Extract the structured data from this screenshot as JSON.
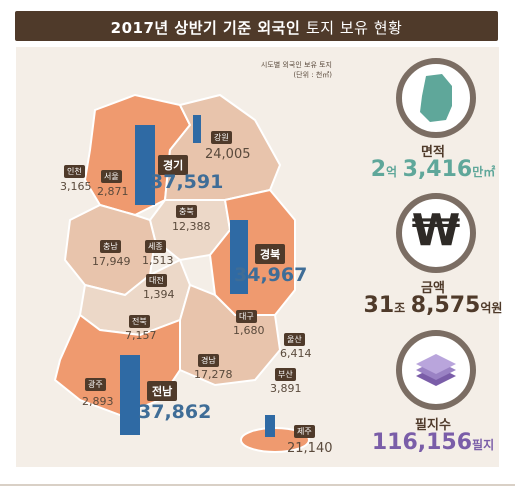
{
  "header": {
    "title_bold": "2017년 상반기 기준 외국인",
    "title_light": "토지 보유 현황"
  },
  "legend": {
    "line1": "시도별 외국인 보유 토지",
    "line2": "(단위 : 천㎡)"
  },
  "regions": [
    {
      "name": "강원",
      "value": "24,005",
      "big": false
    },
    {
      "name": "경기",
      "value": "37,591",
      "big": true
    },
    {
      "name": "인천",
      "value": "3,165",
      "big": false
    },
    {
      "name": "서울",
      "value": "2,871",
      "big": false
    },
    {
      "name": "충북",
      "value": "12,388",
      "big": false
    },
    {
      "name": "충남",
      "value": "17,949",
      "big": false
    },
    {
      "name": "세종",
      "value": "1,513",
      "big": false
    },
    {
      "name": "대전",
      "value": "1,394",
      "big": false
    },
    {
      "name": "경북",
      "value": "34,967",
      "big": true
    },
    {
      "name": "전북",
      "value": "7,157",
      "big": false
    },
    {
      "name": "대구",
      "value": "1,680",
      "big": false
    },
    {
      "name": "울산",
      "value": "6,414",
      "big": false
    },
    {
      "name": "경남",
      "value": "17,278",
      "big": false
    },
    {
      "name": "부산",
      "value": "3,891",
      "big": false
    },
    {
      "name": "광주",
      "value": "2,893",
      "big": false
    },
    {
      "name": "전남",
      "value": "37,862",
      "big": true
    },
    {
      "name": "제주",
      "value": "21,140",
      "big": false
    }
  ],
  "stats": {
    "area": {
      "title": "면적",
      "part1": "2",
      "unit1": "억",
      "part2": "3,416",
      "unit2": "만㎡"
    },
    "amount": {
      "title": "금액",
      "part1": "31",
      "unit1": "조",
      "part2": "8,575",
      "unit2": "억원"
    },
    "parcels": {
      "title": "필지수",
      "part1": "116,156",
      "unit1": "필지"
    }
  },
  "colors": {
    "header": "#4f3a2a",
    "bar": "#2f6aa4",
    "map_orange": "#ef9a6f",
    "map_light": "#e8c4ac",
    "map_pale": "#ecd8c8",
    "teal": "#5fa79a",
    "purple": "#7a5da8"
  },
  "icons": {
    "area": "korea-map-icon",
    "amount": "won-sign-icon",
    "parcels": "stacked-layers-icon"
  }
}
